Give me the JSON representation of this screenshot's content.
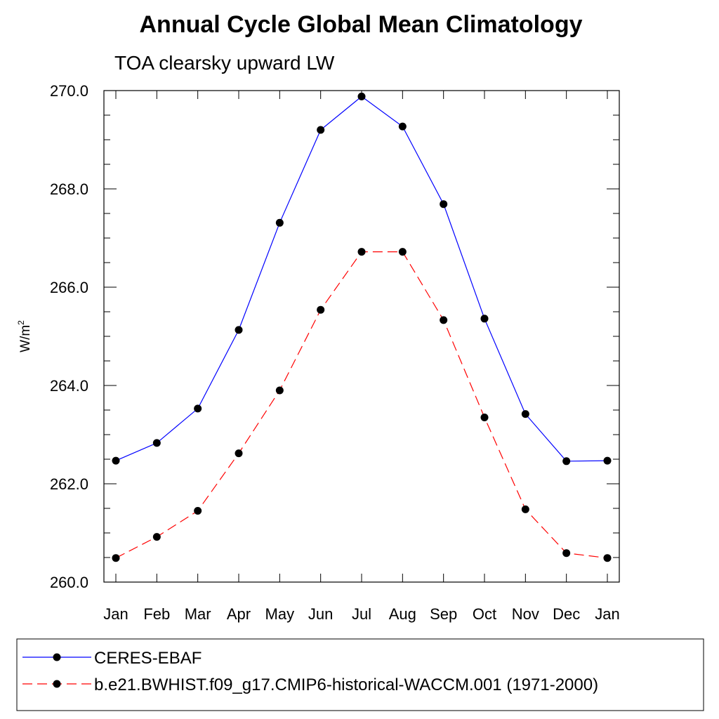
{
  "chart_data": {
    "type": "line",
    "title": "Annual Cycle Global Mean Climatology",
    "subtitle": "TOA clearsky upward LW",
    "ylabel": "W/m",
    "ylabel_superscript": "2",
    "xlabel": "",
    "categories": [
      "Jan",
      "Feb",
      "Mar",
      "Apr",
      "May",
      "Jun",
      "Jul",
      "Aug",
      "Sep",
      "Oct",
      "Nov",
      "Dec",
      "Jan"
    ],
    "ylim": [
      260.0,
      270.0
    ],
    "yticks": [
      "260.0",
      "262.0",
      "264.0",
      "266.0",
      "268.0",
      "270.0"
    ],
    "series": [
      {
        "name": "CERES-EBAF",
        "color": "#0000ff",
        "dashed": false,
        "values": [
          262.47,
          262.83,
          263.53,
          265.13,
          267.31,
          269.2,
          269.88,
          269.27,
          267.69,
          265.36,
          263.42,
          262.46,
          262.47
        ]
      },
      {
        "name": "b.e21.BWHIST.f09_g17.CMIP6-historical-WACCM.001 (1971-2000)",
        "color": "#ff0000",
        "dashed": true,
        "values": [
          260.49,
          260.92,
          261.45,
          262.62,
          263.9,
          265.54,
          266.72,
          266.72,
          265.33,
          263.35,
          261.48,
          260.59,
          260.49
        ]
      }
    ],
    "legend_position": "bottom"
  }
}
